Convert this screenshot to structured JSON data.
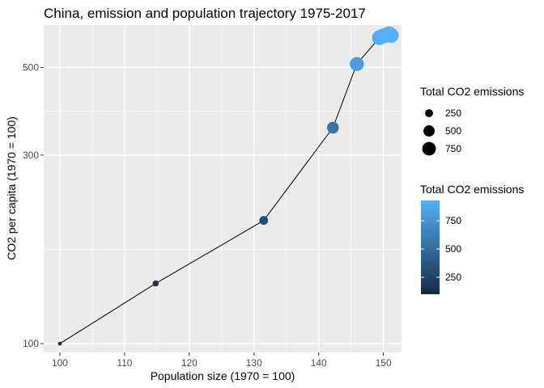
{
  "chart_data": {
    "type": "scatter",
    "title": "China, emission and population trajectory 1975-2017",
    "xlabel": "Population size (1970 = 100)",
    "ylabel": "CO2 per capita (1970 = 100)",
    "xlim": [
      97.5,
      152.8
    ],
    "ylim": [
      95,
      640
    ],
    "y_scale": "log",
    "x_ticks": [
      100,
      110,
      120,
      130,
      140,
      150
    ],
    "y_ticks": [
      100,
      300,
      500
    ],
    "grid": true,
    "points": [
      {
        "x": 100.0,
        "y": 100,
        "emission": 100
      },
      {
        "x": 114.8,
        "y": 142,
        "emission": 160
      },
      {
        "x": 131.5,
        "y": 205,
        "emission": 300
      },
      {
        "x": 142.2,
        "y": 352,
        "emission": 550
      },
      {
        "x": 145.9,
        "y": 510,
        "emission": 800
      },
      {
        "x": 149.4,
        "y": 595,
        "emission": 900
      },
      {
        "x": 149.9,
        "y": 600,
        "emission": 910
      },
      {
        "x": 150.5,
        "y": 605,
        "emission": 920
      },
      {
        "x": 150.9,
        "y": 608,
        "emission": 930
      },
      {
        "x": 151.2,
        "y": 603,
        "emission": 925
      }
    ],
    "legend_size": {
      "title": "Total CO2 emissions",
      "entries": [
        {
          "label": "250",
          "value": 250
        },
        {
          "label": "500",
          "value": 500
        },
        {
          "label": "750",
          "value": 750
        }
      ]
    },
    "legend_color": {
      "title": "Total CO2 emissions",
      "range": [
        100,
        930
      ],
      "low_color": "#132B43",
      "high_color": "#56B1F7",
      "ticks": [
        {
          "label": "250",
          "value": 250
        },
        {
          "label": "500",
          "value": 500
        },
        {
          "label": "750",
          "value": 750
        }
      ]
    },
    "colors": {
      "panel": "#EBEBEB",
      "grid": "#FFFFFF",
      "line": "#000000",
      "low": "#132B43",
      "high": "#56B1F7"
    }
  }
}
